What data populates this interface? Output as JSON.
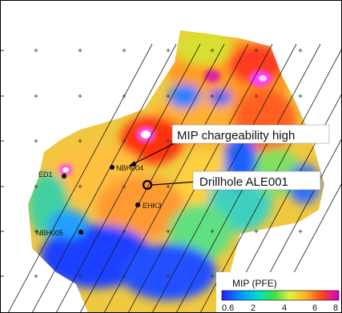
{
  "map": {
    "labels": {
      "nbh004": "NBH004",
      "ed1": "ED1",
      "ehk": "EHK3",
      "nbh005": "NBH005"
    },
    "callouts": {
      "mip_high": "MIP chargeability high",
      "drillhole": "Drillhole ALE001"
    },
    "legend": {
      "title": "MIP (PFE)",
      "ticks": [
        "0.6",
        "2",
        "4",
        "6",
        "8"
      ]
    },
    "colors": {
      "low": "#1a3cff",
      "mid": "#ffe040",
      "high": "#ff2020",
      "peak": "#ff40ff"
    }
  }
}
